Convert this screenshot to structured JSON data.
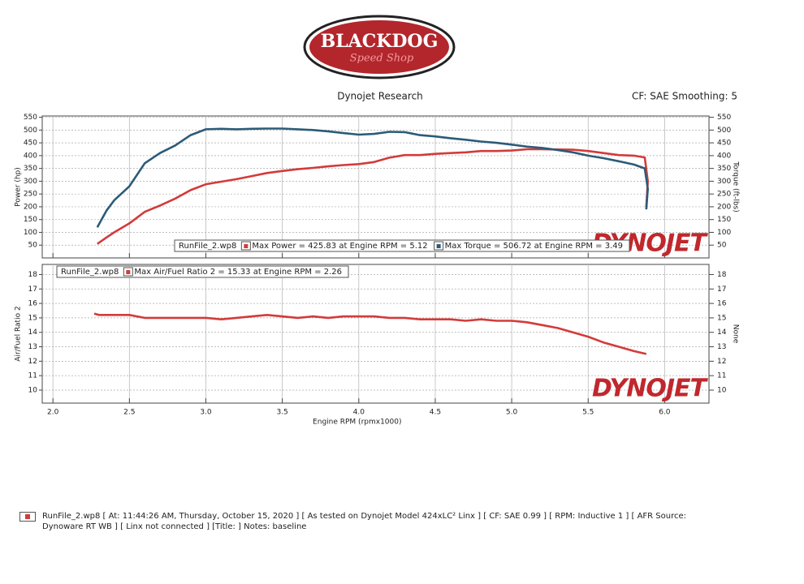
{
  "header": {
    "logo_title": "BLACKDOG",
    "logo_subtitle": "Speed Shop",
    "company": "Dynojet Research",
    "settings": "CF: SAE Smoothing: 5"
  },
  "chart_data": [
    {
      "type": "line",
      "ylabel": "Power (hp)",
      "y2label": "Torque (ft-lbs)",
      "legend_file": "RunFile_2.wp8",
      "watermark": "DYNOJET",
      "xlim": [
        1.93,
        6.29
      ],
      "ylim": [
        0,
        555
      ],
      "y2lim": [
        0,
        555
      ],
      "yticks": [
        50,
        100,
        150,
        200,
        250,
        300,
        350,
        400,
        450,
        500,
        550
      ],
      "y2ticks": [
        50,
        100,
        150,
        200,
        250,
        300,
        350,
        400,
        450,
        500,
        550
      ],
      "grid": true,
      "x": [
        2.29,
        2.35,
        2.4,
        2.5,
        2.6,
        2.7,
        2.8,
        2.9,
        3.0,
        3.1,
        3.2,
        3.3,
        3.4,
        3.5,
        3.6,
        3.7,
        3.8,
        3.9,
        4.0,
        4.1,
        4.2,
        4.3,
        4.4,
        4.5,
        4.6,
        4.7,
        4.8,
        4.9,
        5.0,
        5.1,
        5.2,
        5.3,
        5.4,
        5.5,
        5.6,
        5.7,
        5.8,
        5.87,
        5.89,
        5.88
      ],
      "series": [
        {
          "name": "Max Power = 425.83 at Engine RPM = 5.12",
          "color": "#d23b3b",
          "values": [
            55,
            80,
            100,
            135,
            180,
            205,
            232,
            265,
            288,
            298,
            308,
            320,
            332,
            340,
            347,
            352,
            358,
            363,
            367,
            375,
            392,
            402,
            402,
            407,
            410,
            413,
            418,
            418,
            420,
            425,
            425,
            424,
            423,
            418,
            410,
            402,
            400,
            393,
            300,
            200
          ]
        },
        {
          "name": "Max Torque = 506.72 at Engine RPM = 3.49",
          "color": "#2b5b78",
          "axis": "y2",
          "values": [
            120,
            185,
            225,
            280,
            370,
            410,
            440,
            480,
            503,
            505,
            503,
            505,
            506,
            506,
            503,
            500,
            495,
            488,
            482,
            485,
            493,
            492,
            480,
            475,
            468,
            462,
            455,
            450,
            443,
            435,
            430,
            422,
            413,
            400,
            390,
            378,
            365,
            350,
            270,
            190
          ]
        }
      ]
    },
    {
      "type": "line",
      "ylabel": "Air/Fuel Ratio 2",
      "y2label": "None",
      "xlabel": "Engine RPM (rpmx1000)",
      "legend_file": "RunFile_2.wp8",
      "watermark": "DYNOJET",
      "xlim": [
        1.93,
        6.29
      ],
      "ylim": [
        9.1,
        18.7
      ],
      "y2lim": [
        9.1,
        18.7
      ],
      "xticks": [
        {
          "value": 2,
          "label": "2.0"
        },
        2.5,
        {
          "value": 3,
          "label": "3.0"
        },
        3.5,
        {
          "value": 4,
          "label": "4.0"
        },
        4.5,
        {
          "value": 5,
          "label": "5.0"
        },
        5.5,
        {
          "value": 6,
          "label": "6.0"
        }
      ],
      "yticks": [
        10,
        11,
        12,
        13,
        14,
        15,
        16,
        17,
        18
      ],
      "y2ticks": [
        10,
        11,
        12,
        13,
        14,
        15,
        16,
        17,
        18
      ],
      "grid": true,
      "x": [
        2.27,
        2.3,
        2.4,
        2.5,
        2.6,
        2.7,
        2.8,
        2.9,
        3.0,
        3.1,
        3.2,
        3.3,
        3.4,
        3.5,
        3.6,
        3.7,
        3.8,
        3.9,
        4.0,
        4.1,
        4.2,
        4.3,
        4.4,
        4.5,
        4.6,
        4.7,
        4.8,
        4.9,
        5.0,
        5.1,
        5.2,
        5.3,
        5.4,
        5.5,
        5.6,
        5.7,
        5.8,
        5.88
      ],
      "series": [
        {
          "name": "Max Air/Fuel Ratio 2 = 15.33 at Engine RPM = 2.26",
          "color": "#d23b3b",
          "values": [
            15.3,
            15.2,
            15.2,
            15.2,
            15.0,
            15.0,
            15.0,
            15.0,
            15.0,
            14.9,
            15.0,
            15.1,
            15.2,
            15.1,
            15.0,
            15.1,
            15.0,
            15.1,
            15.1,
            15.1,
            15.0,
            15.0,
            14.9,
            14.9,
            14.9,
            14.8,
            14.9,
            14.8,
            14.8,
            14.7,
            14.5,
            14.3,
            14.0,
            13.7,
            13.3,
            13.0,
            12.7,
            12.5
          ]
        }
      ]
    }
  ],
  "footer": {
    "text": "RunFile_2.wp8 [ At: 11:44:26 AM, Thursday, October 15, 2020 ] [ As tested on Dynojet Model 424xLC² Linx ] [ CF: SAE 0.99 ] [ RPM: Inductive 1 ] [ AFR Source: Dynoware RT WB ] [ Linx not connected ] [Title: ]  Notes: baseline"
  }
}
